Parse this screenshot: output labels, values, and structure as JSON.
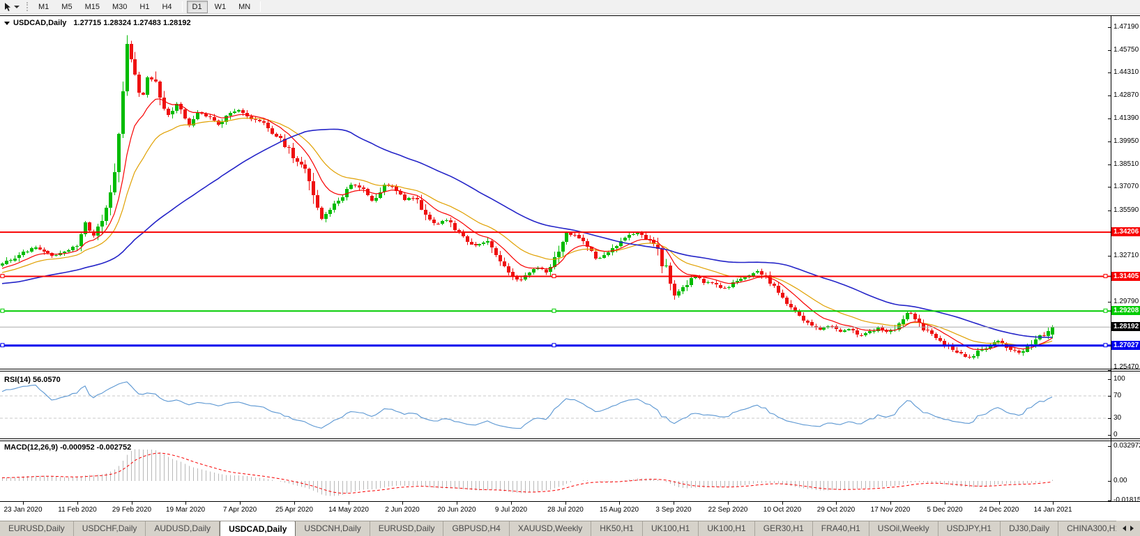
{
  "toolbar": {
    "timeframes": [
      "M1",
      "M5",
      "M15",
      "M30",
      "H1",
      "H4",
      "D1",
      "W1",
      "MN"
    ],
    "active_timeframe": "D1",
    "icons": {
      "cursor_tool": "crosshair-pointer",
      "dropdown": "caret-down"
    }
  },
  "chart": {
    "symbol_title": "USDCAD,Daily",
    "ohlc_text": "1.27715 1.28324 1.27483 1.28192"
  },
  "price_axis": {
    "visible_ticks": [
      "1.47190",
      "1.45750",
      "1.44310",
      "1.42870",
      "1.41390",
      "1.39950",
      "1.38510",
      "1.37070",
      "1.35590",
      "1.32710",
      "1.29790",
      "1.25470"
    ]
  },
  "lines": [
    {
      "price": 1.34206,
      "label": "1.34206",
      "color": "#F80000",
      "width": 2,
      "selected": false
    },
    {
      "price": 1.31405,
      "label": "1.31405",
      "color": "#F80000",
      "width": 2,
      "selected": true
    },
    {
      "price": 1.29208,
      "label": "1.29208",
      "color": "#00CC00",
      "width": 2,
      "selected": true
    },
    {
      "price": 1.27027,
      "label": "1.27027",
      "color": "#0000EE",
      "width": 3,
      "selected": true
    }
  ],
  "current_price": {
    "price": 1.28192,
    "label": "1.28192",
    "line_color": "#ABABAB",
    "badge_color": "#000000"
  },
  "rsi_panel": {
    "label": "RSI(14) 56.0570",
    "value": 56.057,
    "axis_labels": [
      "100",
      "70",
      "30",
      "0"
    ],
    "axis_values": [
      100,
      70,
      30,
      0
    ],
    "dashed_levels": [
      70,
      30
    ],
    "line_color": "#5A96D2"
  },
  "macd_panel": {
    "label": "MACD(12,26,9) -0.000952 -0.002752",
    "main_value": -0.000952,
    "signal_value": -0.002752,
    "axis_labels": [
      "0.032972",
      "0.00",
      "-0.018154"
    ],
    "axis_values": [
      0.032972,
      0.0,
      -0.018154
    ],
    "histogram_color": "#B8B8B8",
    "signal_color": "#F80000"
  },
  "date_axis": {
    "labels": [
      "23 Jan 2020",
      "11 Feb 2020",
      "29 Feb 2020",
      "19 Mar 2020",
      "7 Apr 2020",
      "25 Apr 2020",
      "14 May 2020",
      "2 Jun 2020",
      "20 Jun 2020",
      "9 Jul 2020",
      "28 Jul 2020",
      "15 Aug 2020",
      "3 Sep 2020",
      "22 Sep 2020",
      "10 Oct 2020",
      "29 Oct 2020",
      "17 Nov 2020",
      "5 Dec 2020",
      "24 Dec 2020",
      "14 Jan 2021"
    ]
  },
  "tabs": {
    "items": [
      "EURUSD,Daily",
      "USDCHF,Daily",
      "AUDUSD,Daily",
      "USDCAD,Daily",
      "USDCNH,Daily",
      "EURUSD,Daily",
      "GBPUSD,H4",
      "XAUUSD,Weekly",
      "HK50,H1",
      "UK100,H1",
      "UK100,H1",
      "GER30,H1",
      "FRA40,H1",
      "USOil,Weekly",
      "USDJPY,H1",
      "DJ30,Daily",
      "CHINA300,H1"
    ],
    "active_index": 3,
    "overflow_partial": "U"
  },
  "colors": {
    "candle_up": "#00BB00",
    "candle_down": "#EE1111",
    "ma_fast_red": "#F80000",
    "ma_mid_orange": "#E0A000",
    "ma_slow_blue": "#2424C8",
    "rsi_line": "#5A96D2",
    "macd_hist": "#B8B8B8",
    "macd_signal": "#F80000",
    "grid_dashed": "#C8C8C8"
  },
  "chart_data": {
    "type": "candlestick",
    "symbol": "USDCAD",
    "timeframe": "Daily",
    "last_bar": {
      "open": 1.27715,
      "high": 1.28324,
      "low": 1.27483,
      "close": 1.28192
    },
    "peak_high": 1.4668,
    "y_axis_ticks": [
      1.4719,
      1.4575,
      1.4431,
      1.4287,
      1.4139,
      1.3995,
      1.3851,
      1.3707,
      1.3559,
      1.3271,
      1.2979,
      1.2547
    ],
    "horizontal_lines": [
      1.34206,
      1.31405,
      1.29208,
      1.27027
    ],
    "x_axis_dates": [
      "23 Jan 2020",
      "11 Feb 2020",
      "29 Feb 2020",
      "19 Mar 2020",
      "7 Apr 2020",
      "25 Apr 2020",
      "14 May 2020",
      "2 Jun 2020",
      "20 Jun 2020",
      "9 Jul 2020",
      "28 Jul 2020",
      "15 Aug 2020",
      "3 Sep 2020",
      "22 Sep 2020",
      "10 Oct 2020",
      "29 Oct 2020",
      "17 Nov 2020",
      "5 Dec 2020",
      "24 Dec 2020",
      "14 Jan 2021"
    ],
    "indicators": {
      "rsi": {
        "period": 14,
        "last": 56.057
      },
      "macd": {
        "fast": 12,
        "slow": 26,
        "signal": 9,
        "last_main": -0.000952,
        "last_signal": -0.002752
      },
      "moving_averages": [
        {
          "name": "fast",
          "color": "red"
        },
        {
          "name": "mid",
          "color": "orange"
        },
        {
          "name": "slow",
          "color": "blue"
        }
      ]
    },
    "price_path_anchors": [
      [
        0,
        1.3215
      ],
      [
        25,
        1.3268
      ],
      [
        50,
        1.333
      ],
      [
        75,
        1.3268
      ],
      [
        100,
        1.331
      ],
      [
        113,
        1.336
      ],
      [
        121,
        1.348
      ],
      [
        133,
        1.3395
      ],
      [
        148,
        1.352
      ],
      [
        160,
        1.368
      ],
      [
        171,
        1.406
      ],
      [
        182,
        1.46
      ],
      [
        191,
        1.447
      ],
      [
        203,
        1.425
      ],
      [
        213,
        1.443
      ],
      [
        225,
        1.433
      ],
      [
        238,
        1.415
      ],
      [
        254,
        1.4235
      ],
      [
        269,
        1.4085
      ],
      [
        284,
        1.418
      ],
      [
        299,
        1.4145
      ],
      [
        314,
        1.41
      ],
      [
        329,
        1.4165
      ],
      [
        344,
        1.419
      ],
      [
        359,
        1.414
      ],
      [
        374,
        1.412
      ],
      [
        389,
        1.406
      ],
      [
        404,
        1.4005
      ],
      [
        419,
        1.39
      ],
      [
        434,
        1.385
      ],
      [
        448,
        1.368
      ],
      [
        461,
        1.349
      ],
      [
        474,
        1.357
      ],
      [
        489,
        1.3625
      ],
      [
        504,
        1.3735
      ],
      [
        519,
        1.369
      ],
      [
        534,
        1.3615
      ],
      [
        549,
        1.372
      ],
      [
        564,
        1.37
      ],
      [
        579,
        1.3625
      ],
      [
        594,
        1.3645
      ],
      [
        609,
        1.355
      ],
      [
        624,
        1.346
      ],
      [
        639,
        1.3505
      ],
      [
        654,
        1.343
      ],
      [
        669,
        1.337
      ],
      [
        684,
        1.3325
      ],
      [
        699,
        1.3375
      ],
      [
        714,
        1.3235
      ],
      [
        729,
        1.317
      ],
      [
        744,
        1.311
      ],
      [
        757,
        1.316
      ],
      [
        771,
        1.3195
      ],
      [
        784,
        1.317
      ],
      [
        799,
        1.3295
      ],
      [
        814,
        1.3415
      ],
      [
        829,
        1.339
      ],
      [
        844,
        1.331
      ],
      [
        857,
        1.325
      ],
      [
        871,
        1.3295
      ],
      [
        886,
        1.335
      ],
      [
        901,
        1.34
      ],
      [
        914,
        1.3418
      ],
      [
        927,
        1.338
      ],
      [
        941,
        1.332
      ],
      [
        955,
        1.318
      ],
      [
        967,
        1.3025
      ],
      [
        980,
        1.307
      ],
      [
        994,
        1.3148
      ],
      [
        1009,
        1.311
      ],
      [
        1024,
        1.309
      ],
      [
        1039,
        1.3062
      ],
      [
        1054,
        1.311
      ],
      [
        1069,
        1.313
      ],
      [
        1084,
        1.3178
      ],
      [
        1099,
        1.313
      ],
      [
        1114,
        1.3042
      ],
      [
        1129,
        1.2962
      ],
      [
        1144,
        1.2892
      ],
      [
        1159,
        1.2842
      ],
      [
        1174,
        1.2802
      ],
      [
        1189,
        1.283
      ],
      [
        1204,
        1.2792
      ],
      [
        1219,
        1.2812
      ],
      [
        1234,
        1.2762
      ],
      [
        1249,
        1.2792
      ],
      [
        1261,
        1.282
      ],
      [
        1274,
        1.2776
      ],
      [
        1289,
        1.285
      ],
      [
        1301,
        1.2918
      ],
      [
        1314,
        1.2872
      ],
      [
        1329,
        1.2792
      ],
      [
        1344,
        1.2732
      ],
      [
        1359,
        1.27
      ],
      [
        1374,
        1.2652
      ],
      [
        1389,
        1.2622
      ],
      [
        1404,
        1.2672
      ],
      [
        1419,
        1.2702
      ],
      [
        1434,
        1.2732
      ],
      [
        1447,
        1.2692
      ],
      [
        1459,
        1.2652
      ],
      [
        1471,
        1.2682
      ],
      [
        1484,
        1.2742
      ],
      [
        1497,
        1.2772
      ],
      [
        1510,
        1.2819
      ]
    ]
  }
}
